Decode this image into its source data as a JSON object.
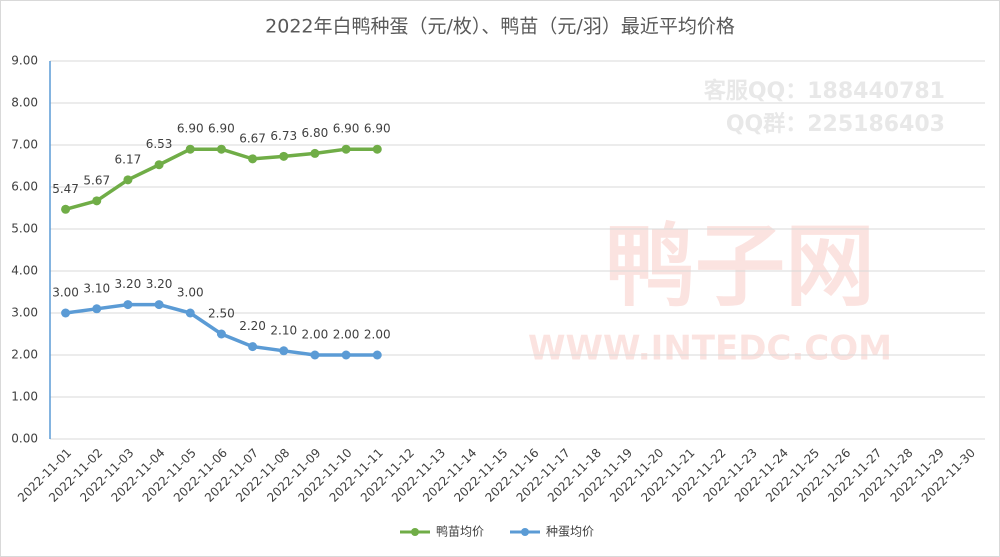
{
  "chart_data": {
    "type": "line",
    "title": "2022年白鸭种蛋（元/枚）、鸭苗（元/羽）最近平均价格",
    "watermarks": [
      "客服QQ：188440781",
      "QQ群：225186403",
      "鸭子网",
      "WWW.INTEDC.COM"
    ],
    "categories": [
      "2022-11-01",
      "2022-11-02",
      "2022-11-03",
      "2022-11-04",
      "2022-11-05",
      "2022-11-06",
      "2022-11-07",
      "2022-11-08",
      "2022-11-09",
      "2022-11-10",
      "2022-11-11",
      "2022-11-12",
      "2022-11-13",
      "2022-11-14",
      "2022-11-15",
      "2022-11-16",
      "2022-11-17",
      "2022-11-18",
      "2022-11-19",
      "2022-11-20",
      "2022-11-21",
      "2022-11-22",
      "2022-11-23",
      "2022-11-24",
      "2022-11-25",
      "2022-11-26",
      "2022-11-27",
      "2022-11-28",
      "2022-11-29",
      "2022-11-30"
    ],
    "series": [
      {
        "name": "鸭苗均价",
        "color": "#70ad47",
        "values": [
          5.47,
          5.67,
          6.17,
          6.53,
          6.9,
          6.9,
          6.67,
          6.73,
          6.8,
          6.9,
          6.9,
          null,
          null,
          null,
          null,
          null,
          null,
          null,
          null,
          null,
          null,
          null,
          null,
          null,
          null,
          null,
          null,
          null,
          null,
          null
        ],
        "value_labels": [
          "5.47",
          "5.67",
          "6.17",
          "6.53",
          "6.90",
          "6.90",
          "6.67",
          "6.73",
          "6.80",
          "6.90",
          "6.90",
          null,
          null,
          null,
          null,
          null,
          null,
          null,
          null,
          null,
          null,
          null,
          null,
          null,
          null,
          null,
          null,
          null,
          null,
          null
        ]
      },
      {
        "name": "种蛋均价",
        "color": "#5b9bd5",
        "values": [
          3,
          3.1,
          3.2,
          3.2,
          3,
          2.5,
          2.2,
          2.1,
          2,
          2,
          2,
          null,
          null,
          null,
          null,
          null,
          null,
          null,
          null,
          null,
          null,
          null,
          null,
          null,
          null,
          null,
          null,
          null,
          null,
          null
        ],
        "value_labels": [
          "3.00",
          "3.10",
          "3.20",
          "3.20",
          "3.00",
          "2.50",
          "2.20",
          "2.10",
          "2.00",
          "2.00",
          "2.00",
          null,
          null,
          null,
          null,
          null,
          null,
          null,
          null,
          null,
          null,
          null,
          null,
          null,
          null,
          null,
          null,
          null,
          null,
          null
        ]
      }
    ],
    "ylim": [
      0,
      9
    ],
    "yticks": [
      {
        "value": 0,
        "label": "0.00"
      },
      {
        "value": 1,
        "label": "1.00"
      },
      {
        "value": 2,
        "label": "2.00"
      },
      {
        "value": 3,
        "label": "3.00"
      },
      {
        "value": 4,
        "label": "4.00"
      },
      {
        "value": 5,
        "label": "5.00"
      },
      {
        "value": 6,
        "label": "6.00"
      },
      {
        "value": 7,
        "label": "7.00"
      },
      {
        "value": 8,
        "label": "8.00"
      },
      {
        "value": 9,
        "label": "9.00"
      }
    ],
    "grid": true,
    "legend": "bottom"
  }
}
